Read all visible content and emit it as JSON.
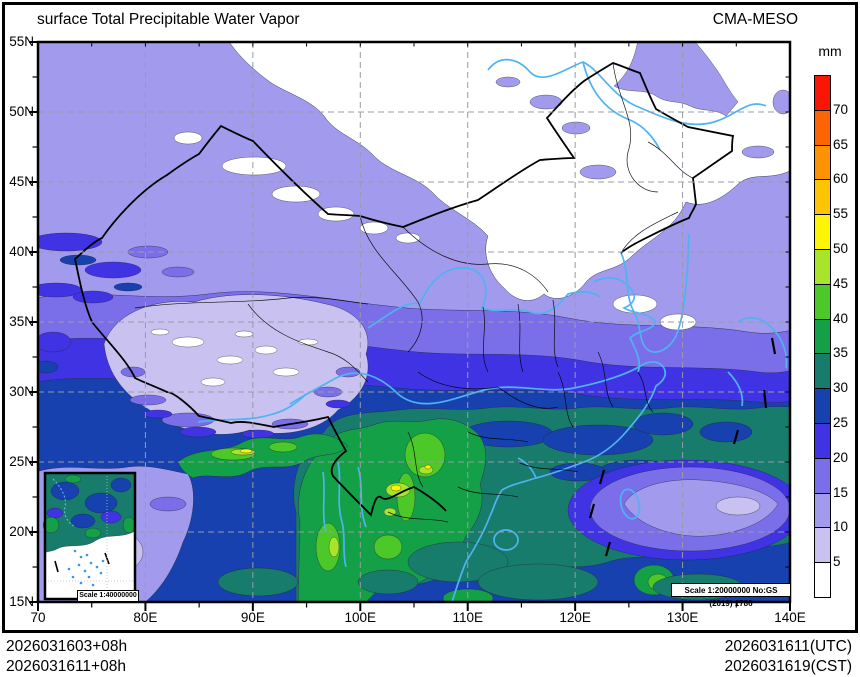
{
  "header": {
    "title": "surface Total Precipitable Water Vapor",
    "model": "CMA-MESO"
  },
  "colorbar": {
    "unit": "mm",
    "boundary_labels": [
      "70",
      "65",
      "60",
      "55",
      "50",
      "45",
      "40",
      "35",
      "30",
      "25",
      "20",
      "15",
      "10",
      "5"
    ],
    "colors_top_to_bottom": [
      "#fa1505",
      "#fc6404",
      "#fd9303",
      "#fdc404",
      "#fdf506",
      "#a8e42a",
      "#4cc829",
      "#13a046",
      "#177c6c",
      "#1641ae",
      "#4033e3",
      "#7a6fe9",
      "#a29aed",
      "#c9c2f1",
      "#ffffff"
    ]
  },
  "axes": {
    "lat_labels": [
      "55N",
      "50N",
      "45N",
      "40N",
      "35N",
      "30N",
      "25N",
      "20N",
      "15N"
    ],
    "lon_labels": [
      "70",
      "80E",
      "90E",
      "100E",
      "110E",
      "120E",
      "130E",
      "140E"
    ]
  },
  "footer": {
    "left_line1": "2026031603+08h",
    "left_line2": "2026031611+08h",
    "right_line1": "2026031611(UTC)",
    "right_line2": "2026031619(CST)"
  },
  "scales": {
    "inset": "Scale 1:40000000",
    "main": "Scale 1:20000000 No:GS (2019) 1786"
  }
}
